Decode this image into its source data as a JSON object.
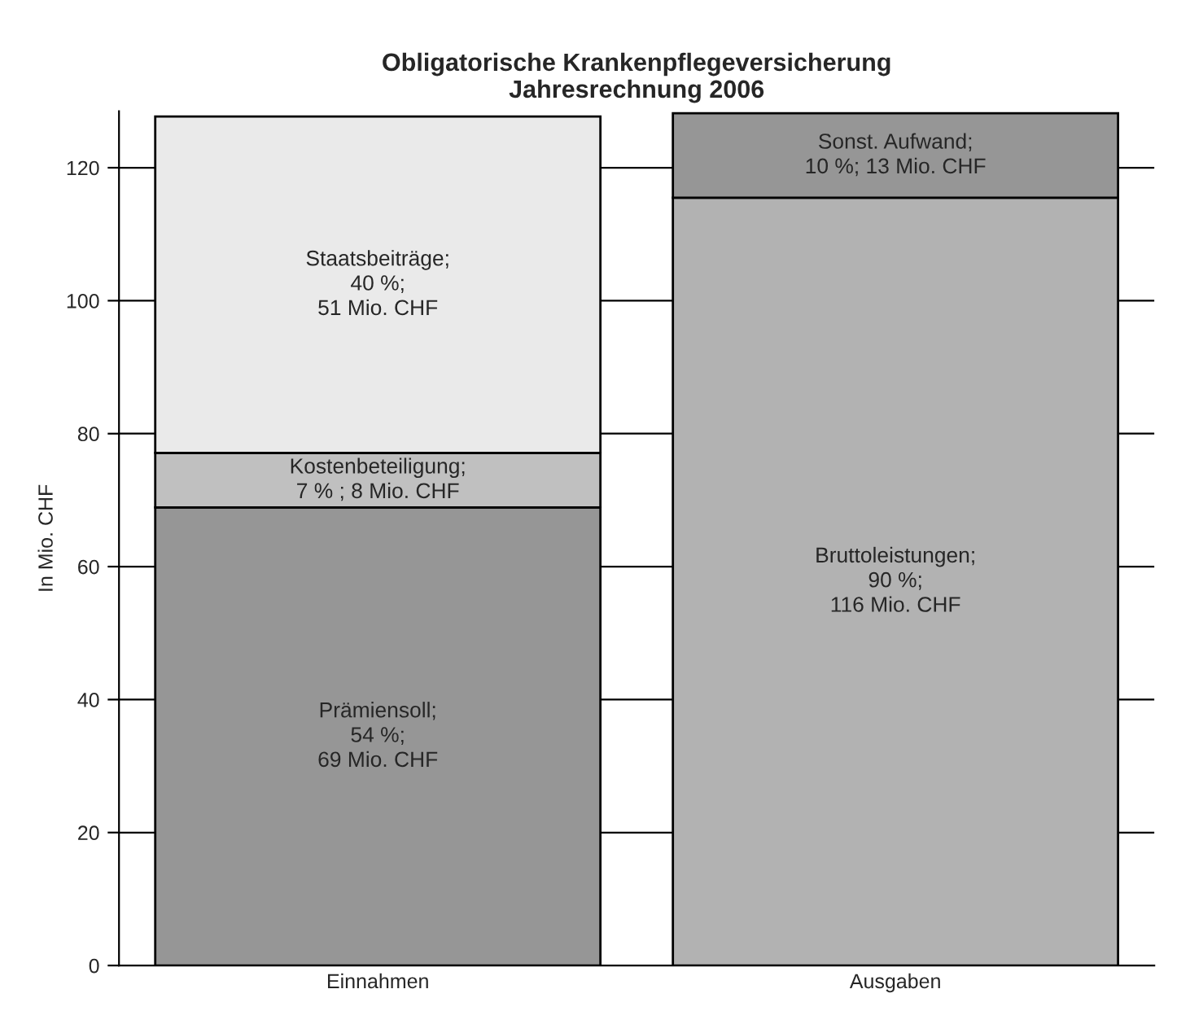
{
  "chart_data": {
    "type": "bar",
    "title": "Obligatorische Krankenpflegeversicherung\nJahresrechnung 2006",
    "ylabel": "In Mio. CHF",
    "categories": [
      "Einnahmen",
      "Ausgaben"
    ],
    "stacked": true,
    "series": [
      {
        "colors": [
          "#969696",
          "#b2b2b2"
        ],
        "values": [
          68.9,
          115.5
        ],
        "value_labels": [
          "Prämiensoll;\n54 %;\n69 Mio. CHF",
          "Bruttoleistungen;\n90 %;\n116 Mio. CHF"
        ]
      },
      {
        "colors": [
          "#c0c0c0",
          "#969696"
        ],
        "values": [
          8.2,
          12.7
        ],
        "value_labels": [
          "Kostenbeteiligung;\n7 % ; 8 Mio. CHF",
          "Sonst. Aufwand;\n10 %; 13 Mio. CHF"
        ]
      },
      {
        "colors": [
          "#eaeaea",
          "#eaeaea"
        ],
        "values": [
          50.6,
          null
        ],
        "value_labels": [
          "Staatsbeiträge;\n40 %;\n51 Mio. CHF",
          null
        ]
      }
    ],
    "ylim": [
      0,
      128.5
    ],
    "yticks": [
      0,
      20,
      40,
      60,
      80,
      100,
      120
    ],
    "grid": "y",
    "legend": false
  }
}
